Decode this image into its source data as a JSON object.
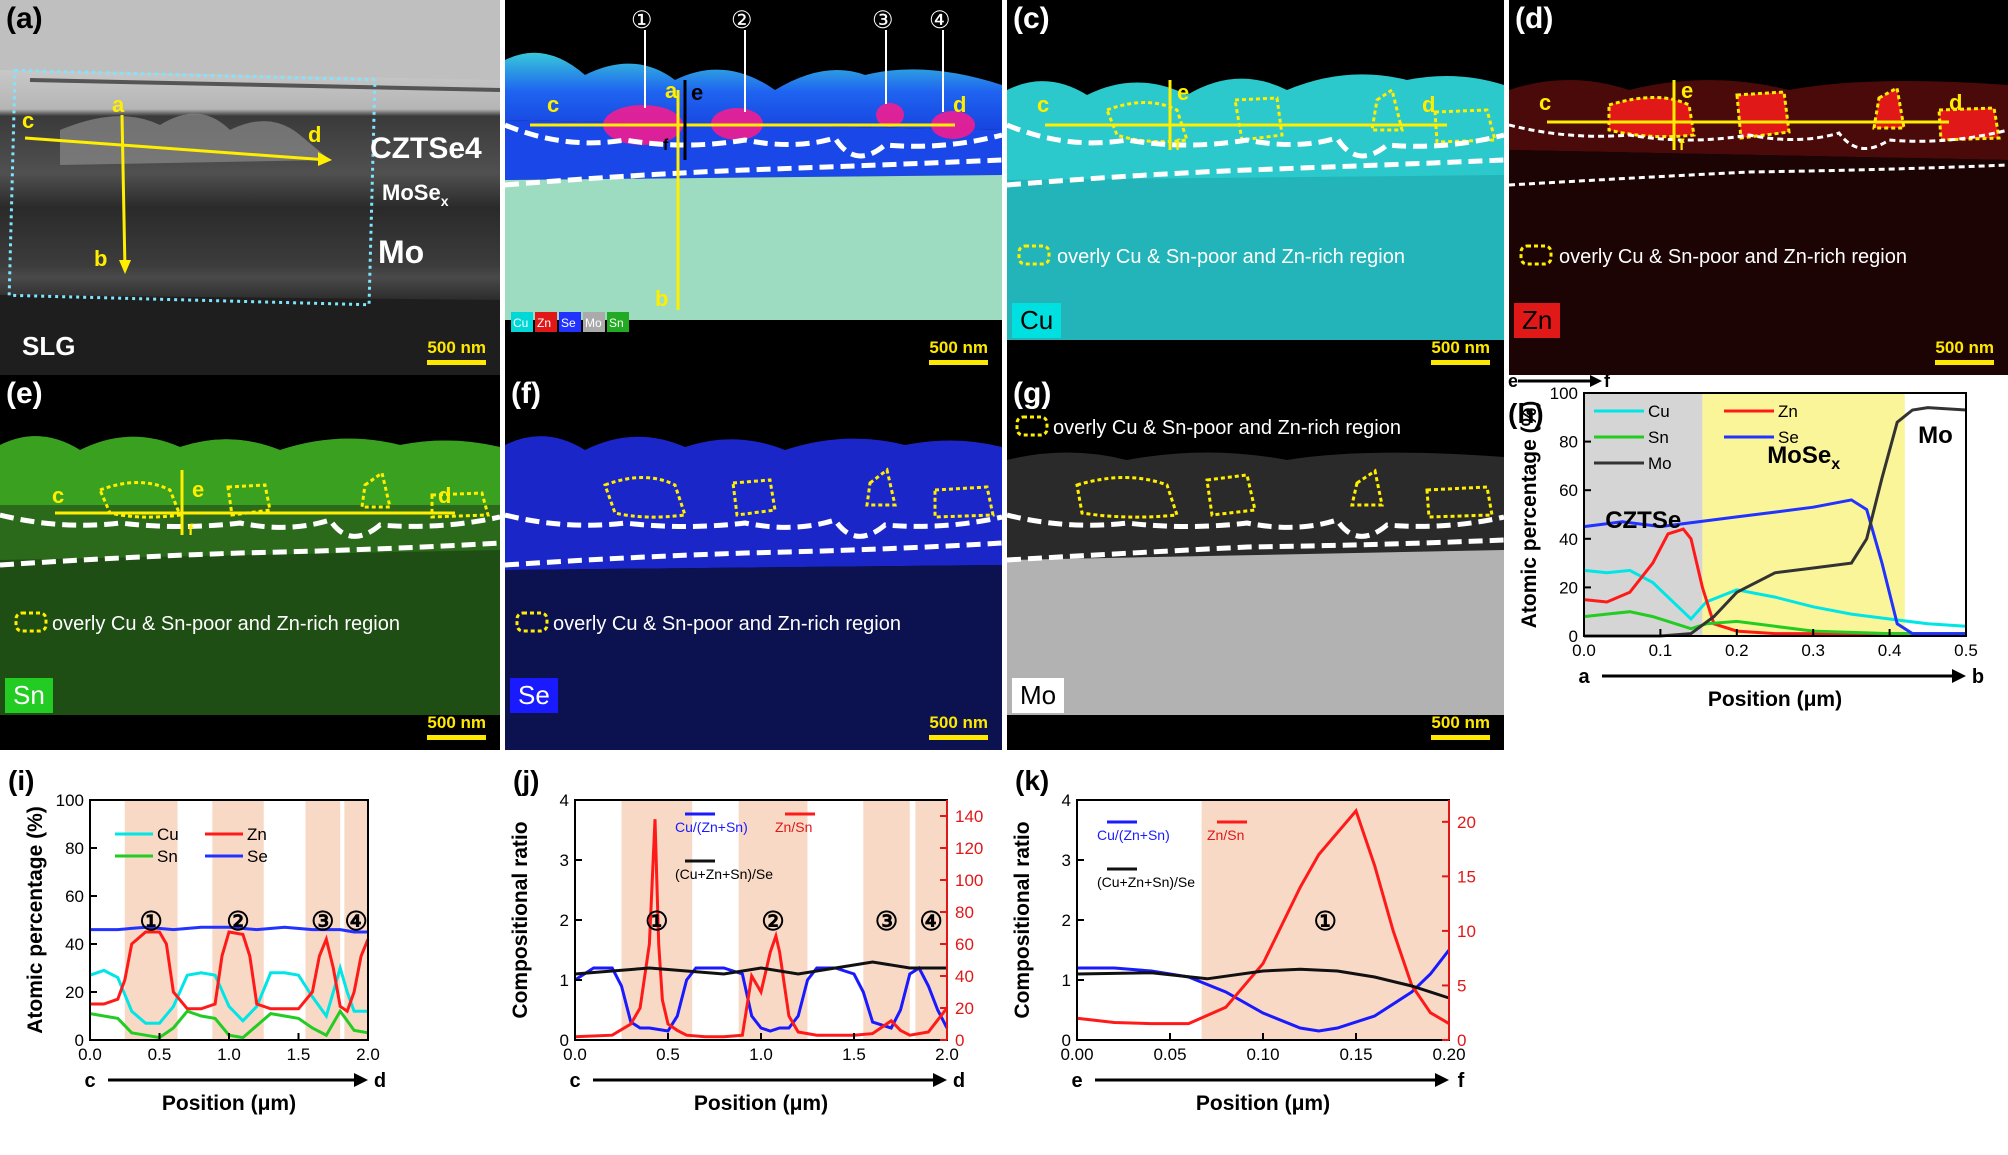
{
  "panels": {
    "a": {
      "label": "(a)",
      "layers": [
        "CZTSe4",
        "MoSe",
        "x",
        "Mo",
        "SLG"
      ],
      "markers": [
        "a",
        "b",
        "c",
        "d"
      ],
      "scale": "500 nm"
    },
    "b": {
      "label": "(b)",
      "sites": [
        "①",
        "②",
        "③",
        "④"
      ],
      "markers": [
        "a",
        "b",
        "c",
        "d",
        "e",
        "f"
      ],
      "elements": [
        "Cu",
        "Zn",
        "Se",
        "Mo",
        "Sn"
      ],
      "scale": "500 nm"
    },
    "c": {
      "label": "(c)",
      "element": "Cu",
      "legend": "overly Cu & Sn-poor and Zn-rich region",
      "markers": [
        "c",
        "d",
        "e",
        "f"
      ],
      "scale": "500 nm"
    },
    "d": {
      "label": "(d)",
      "element": "Zn",
      "legend": "overly Cu & Sn-poor and Zn-rich region",
      "markers": [
        "c",
        "d",
        "e",
        "f"
      ],
      "scale": "500 nm"
    },
    "e": {
      "label": "(e)",
      "element": "Sn",
      "legend": "overly Cu & Sn-poor and Zn-rich region",
      "markers": [
        "c",
        "d",
        "e",
        "f"
      ],
      "scale": "500 nm"
    },
    "f": {
      "label": "(f)",
      "element": "Se",
      "legend": "overly Cu & Sn-poor and Zn-rich region",
      "scale": "500 nm"
    },
    "g": {
      "label": "(g)",
      "element": "Mo",
      "legend": "overly Cu & Sn-poor and Zn-rich region",
      "scale": "500 nm"
    }
  },
  "colors": {
    "Cu": "#00e5e5",
    "Zn": "#ff1a1a",
    "Sn": "#22cc22",
    "Se": "#2233ff",
    "Mo": "#333333"
  },
  "chart_data": [
    {
      "id": "h",
      "panel_label": "(h)",
      "type": "line",
      "top_marker": [
        "e",
        "f"
      ],
      "bottom_marker": [
        "a",
        "b"
      ],
      "xlabel": "Position (μm)",
      "ylabel": "Atomic percentage (%)",
      "xlim": [
        0,
        0.5
      ],
      "ylim": [
        0,
        100
      ],
      "xticks": [
        "0.0",
        "0.1",
        "0.2",
        "0.3",
        "0.4",
        "0.5"
      ],
      "yticks": [
        "0",
        "20",
        "40",
        "60",
        "80",
        "100"
      ],
      "regions": [
        {
          "label": "CZTSe",
          "from": 0.0,
          "to": 0.155,
          "color": "#d5d5d5"
        },
        {
          "label": "MoSe",
          "sub": "x",
          "from": 0.155,
          "to": 0.42,
          "color": "#fbf59a"
        },
        {
          "label": "Mo",
          "from": 0.42,
          "to": 0.5,
          "color": "#ffffff"
        }
      ],
      "series": [
        {
          "name": "Cu",
          "color": "#00e5e5",
          "x": [
            0,
            0.03,
            0.06,
            0.09,
            0.12,
            0.14,
            0.16,
            0.2,
            0.25,
            0.3,
            0.35,
            0.4,
            0.45,
            0.5
          ],
          "y": [
            27,
            26,
            27,
            22,
            13,
            7,
            14,
            19,
            16,
            12,
            9,
            7,
            5,
            4
          ]
        },
        {
          "name": "Zn",
          "color": "#ff1a1a",
          "x": [
            0,
            0.03,
            0.06,
            0.09,
            0.11,
            0.13,
            0.14,
            0.155,
            0.17,
            0.2,
            0.25,
            0.3,
            0.4,
            0.5
          ],
          "y": [
            15,
            14,
            18,
            30,
            42,
            44,
            40,
            20,
            5,
            2,
            1,
            1,
            1,
            1
          ]
        },
        {
          "name": "Sn",
          "color": "#22cc22",
          "x": [
            0,
            0.03,
            0.06,
            0.09,
            0.12,
            0.14,
            0.16,
            0.2,
            0.25,
            0.3,
            0.4,
            0.5
          ],
          "y": [
            8,
            9,
            10,
            8,
            5,
            3,
            5,
            6,
            4,
            2,
            1,
            1
          ]
        },
        {
          "name": "Se",
          "color": "#2233ff",
          "x": [
            0,
            0.05,
            0.1,
            0.15,
            0.2,
            0.25,
            0.3,
            0.35,
            0.37,
            0.39,
            0.41,
            0.43,
            0.5
          ],
          "y": [
            45,
            47,
            45,
            47,
            49,
            51,
            53,
            56,
            52,
            30,
            5,
            1,
            1
          ]
        },
        {
          "name": "Mo",
          "color": "#333333",
          "x": [
            0,
            0.1,
            0.14,
            0.17,
            0.2,
            0.25,
            0.3,
            0.35,
            0.37,
            0.39,
            0.41,
            0.43,
            0.45,
            0.5
          ],
          "y": [
            0,
            0,
            1,
            8,
            18,
            26,
            28,
            30,
            40,
            65,
            88,
            93,
            94,
            93
          ]
        }
      ]
    },
    {
      "id": "i",
      "panel_label": "(i)",
      "type": "line",
      "bottom_marker": [
        "c",
        "d"
      ],
      "xlabel": "Position (μm)",
      "ylabel": "Atomic percentage (%)",
      "xlim": [
        0,
        2.0
      ],
      "ylim": [
        0,
        100
      ],
      "xticks": [
        "0.0",
        "0.5",
        "1.0",
        "1.5",
        "2.0"
      ],
      "yticks": [
        "0",
        "20",
        "40",
        "60",
        "80",
        "100"
      ],
      "regions": [
        {
          "label": "①",
          "from": 0.25,
          "to": 0.63
        },
        {
          "label": "②",
          "from": 0.88,
          "to": 1.25
        },
        {
          "label": "③",
          "from": 1.55,
          "to": 1.8
        },
        {
          "label": "④",
          "from": 1.83,
          "to": 2.0
        }
      ],
      "series": [
        {
          "name": "Cu",
          "color": "#00e5e5",
          "x": [
            0,
            0.1,
            0.2,
            0.3,
            0.4,
            0.5,
            0.6,
            0.7,
            0.8,
            0.9,
            1.0,
            1.1,
            1.2,
            1.3,
            1.4,
            1.5,
            1.6,
            1.7,
            1.75,
            1.8,
            1.85,
            1.9,
            2.0
          ],
          "y": [
            27,
            29,
            26,
            12,
            7,
            7,
            14,
            27,
            28,
            27,
            14,
            8,
            14,
            28,
            28,
            27,
            18,
            10,
            20,
            30,
            20,
            12,
            12
          ]
        },
        {
          "name": "Zn",
          "color": "#ff1a1a",
          "x": [
            0,
            0.1,
            0.2,
            0.25,
            0.3,
            0.4,
            0.5,
            0.55,
            0.6,
            0.7,
            0.8,
            0.9,
            0.95,
            1.0,
            1.1,
            1.15,
            1.2,
            1.3,
            1.4,
            1.5,
            1.6,
            1.65,
            1.7,
            1.75,
            1.8,
            1.85,
            1.9,
            1.95,
            2.0
          ],
          "y": [
            15,
            15,
            17,
            25,
            40,
            45,
            45,
            40,
            20,
            13,
            13,
            15,
            35,
            45,
            44,
            35,
            15,
            13,
            13,
            13,
            20,
            35,
            42,
            30,
            14,
            12,
            20,
            35,
            42
          ]
        },
        {
          "name": "Sn",
          "color": "#22cc22",
          "x": [
            0,
            0.1,
            0.2,
            0.3,
            0.4,
            0.5,
            0.6,
            0.7,
            0.8,
            0.9,
            1.0,
            1.1,
            1.2,
            1.3,
            1.4,
            1.5,
            1.6,
            1.7,
            1.8,
            1.85,
            1.9,
            2.0
          ],
          "y": [
            11,
            10,
            9,
            3,
            2,
            1,
            5,
            12,
            10,
            9,
            2,
            1,
            6,
            11,
            10,
            9,
            5,
            2,
            12,
            8,
            4,
            3
          ]
        },
        {
          "name": "Se",
          "color": "#2233ff",
          "x": [
            0,
            0.2,
            0.4,
            0.6,
            0.8,
            1.0,
            1.2,
            1.4,
            1.6,
            1.8,
            1.9,
            2.0
          ],
          "y": [
            46,
            46,
            47,
            46,
            47,
            47,
            46,
            47,
            46,
            46,
            45,
            45
          ]
        }
      ]
    },
    {
      "id": "j",
      "panel_label": "(j)",
      "type": "line",
      "bottom_marker": [
        "c",
        "d"
      ],
      "xlabel": "Position (μm)",
      "ylabel": "Compositional ratio",
      "xlim": [
        0,
        2.0
      ],
      "ylim": [
        0,
        4
      ],
      "y2lim": [
        0,
        150
      ],
      "xticks": [
        "0.0",
        "0.5",
        "1.0",
        "1.5",
        "2.0"
      ],
      "yticks": [
        "0",
        "1",
        "2",
        "3",
        "4"
      ],
      "y2ticks": [
        "0",
        "20",
        "40",
        "60",
        "80",
        "100",
        "120",
        "140"
      ],
      "regions": [
        {
          "label": "①",
          "from": 0.25,
          "to": 0.63
        },
        {
          "label": "②",
          "from": 0.88,
          "to": 1.25
        },
        {
          "label": "③",
          "from": 1.55,
          "to": 1.8
        },
        {
          "label": "④",
          "from": 1.83,
          "to": 2.0
        }
      ],
      "series": [
        {
          "name": "Cu/(Zn+Sn)",
          "color": "#1a1aff",
          "axis": "left",
          "x": [
            0,
            0.1,
            0.2,
            0.25,
            0.3,
            0.35,
            0.4,
            0.5,
            0.55,
            0.6,
            0.65,
            0.7,
            0.8,
            0.9,
            0.95,
            1.0,
            1.05,
            1.1,
            1.15,
            1.2,
            1.25,
            1.3,
            1.4,
            1.5,
            1.55,
            1.6,
            1.7,
            1.75,
            1.8,
            1.85,
            1.9,
            1.95,
            2.0
          ],
          "y": [
            1.0,
            1.2,
            1.2,
            0.9,
            0.3,
            0.2,
            0.2,
            0.15,
            0.4,
            1.0,
            1.2,
            1.2,
            1.2,
            1.1,
            0.4,
            0.2,
            0.15,
            0.2,
            0.2,
            0.4,
            1.0,
            1.2,
            1.2,
            1.1,
            0.8,
            0.3,
            0.2,
            0.5,
            1.1,
            1.2,
            0.9,
            0.5,
            0.2
          ]
        },
        {
          "name": "Zn/Sn",
          "color": "#ff1a1a",
          "axis": "right",
          "x": [
            0,
            0.2,
            0.3,
            0.35,
            0.4,
            0.43,
            0.45,
            0.47,
            0.5,
            0.55,
            0.6,
            0.7,
            0.8,
            0.9,
            0.95,
            1.0,
            1.05,
            1.08,
            1.1,
            1.15,
            1.2,
            1.3,
            1.5,
            1.6,
            1.7,
            1.75,
            1.8,
            1.9,
            2.0
          ],
          "y": [
            2,
            3,
            10,
            20,
            60,
            138,
            60,
            25,
            10,
            6,
            3,
            2,
            2,
            3,
            40,
            30,
            55,
            65,
            55,
            15,
            5,
            3,
            3,
            4,
            12,
            6,
            3,
            5,
            20
          ]
        },
        {
          "name": "(Cu+Zn+Sn)/Se",
          "color": "#111111",
          "axis": "left",
          "x": [
            0,
            0.2,
            0.4,
            0.6,
            0.8,
            1.0,
            1.2,
            1.4,
            1.6,
            1.8,
            2.0
          ],
          "y": [
            1.1,
            1.15,
            1.2,
            1.15,
            1.1,
            1.2,
            1.1,
            1.2,
            1.3,
            1.2,
            1.2
          ]
        }
      ]
    },
    {
      "id": "k",
      "panel_label": "(k)",
      "type": "line",
      "bottom_marker": [
        "e",
        "f"
      ],
      "xlabel": "Position (μm)",
      "ylabel": "Compositional ratio",
      "xlim": [
        0,
        0.2
      ],
      "ylim": [
        0,
        4
      ],
      "y2lim": [
        0,
        22
      ],
      "xticks": [
        "0.00",
        "0.05",
        "0.10",
        "0.15",
        "0.20"
      ],
      "yticks": [
        "0",
        "1",
        "2",
        "3",
        "4"
      ],
      "y2ticks": [
        "0",
        "5",
        "10",
        "15",
        "20"
      ],
      "regions": [
        {
          "label": "①",
          "from": 0.067,
          "to": 0.2
        }
      ],
      "series": [
        {
          "name": "Cu/(Zn+Sn)",
          "color": "#1a1aff",
          "axis": "left",
          "x": [
            0,
            0.02,
            0.04,
            0.06,
            0.08,
            0.1,
            0.12,
            0.13,
            0.14,
            0.16,
            0.18,
            0.19,
            0.2
          ],
          "y": [
            1.2,
            1.2,
            1.15,
            1.05,
            0.8,
            0.45,
            0.2,
            0.15,
            0.2,
            0.4,
            0.8,
            1.1,
            1.5
          ]
        },
        {
          "name": "Zn/Sn",
          "color": "#ff1a1a",
          "axis": "right",
          "x": [
            0,
            0.02,
            0.04,
            0.06,
            0.08,
            0.1,
            0.12,
            0.13,
            0.14,
            0.15,
            0.16,
            0.17,
            0.18,
            0.19,
            0.2
          ],
          "y": [
            2,
            1.6,
            1.5,
            1.5,
            3,
            7,
            14,
            17,
            19,
            21,
            16,
            10,
            5,
            2.5,
            1.5
          ]
        },
        {
          "name": "(Cu+Zn+Sn)/Se",
          "color": "#111111",
          "axis": "left",
          "x": [
            0,
            0.04,
            0.07,
            0.1,
            0.12,
            0.14,
            0.16,
            0.18,
            0.2
          ],
          "y": [
            1.1,
            1.12,
            1.02,
            1.15,
            1.18,
            1.15,
            1.05,
            0.9,
            0.7
          ]
        }
      ]
    }
  ]
}
